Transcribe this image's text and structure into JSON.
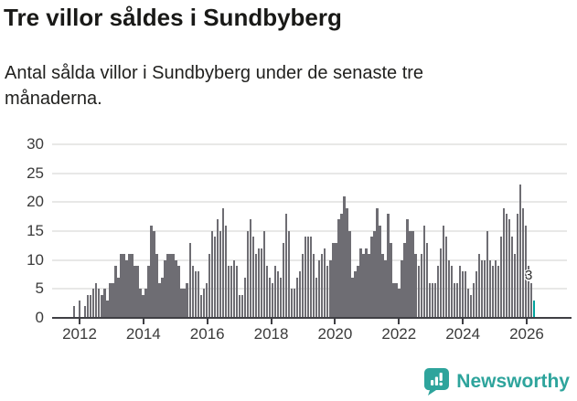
{
  "header": {
    "title": "Tre villor såldes i Sundbyberg",
    "subtitle": "Antal sålda villor i Sundbyberg under de senaste tre månaderna."
  },
  "chart_data": {
    "type": "bar",
    "title": "Tre villor såldes i Sundbyberg",
    "subtitle": "Antal sålda villor i Sundbyberg under de senaste tre månaderna.",
    "frequency": "monthly",
    "x_range_years": [
      2012,
      2026
    ],
    "x_tick_labels": [
      "2012",
      "2014",
      "2016",
      "2018",
      "2020",
      "2022",
      "2024",
      "2026"
    ],
    "y_ticks": [
      0,
      5,
      10,
      15,
      20,
      25,
      30
    ],
    "ylim": [
      0,
      30
    ],
    "grid": true,
    "bar_color": "#6e6d73",
    "highlight_color": "#00a29c",
    "values": [
      2,
      0,
      3,
      0,
      2,
      4,
      4,
      5,
      6,
      5,
      4,
      5,
      3,
      6,
      6,
      9,
      7,
      11,
      11,
      10,
      11,
      11,
      9,
      9,
      5,
      4,
      5,
      9,
      16,
      15,
      11,
      6,
      7,
      10,
      11,
      11,
      11,
      10,
      9,
      5,
      5,
      6,
      13,
      9,
      8,
      8,
      4,
      5,
      6,
      11,
      15,
      14,
      17,
      15,
      19,
      16,
      9,
      9,
      10,
      9,
      4,
      4,
      7,
      15,
      17,
      14,
      11,
      12,
      12,
      15,
      9,
      7,
      6,
      9,
      8,
      7,
      13,
      18,
      15,
      5,
      5,
      7,
      8,
      11,
      14,
      14,
      14,
      11,
      7,
      10,
      11,
      12,
      9,
      10,
      13,
      13,
      17,
      18,
      21,
      19,
      15,
      7,
      8,
      9,
      12,
      11,
      12,
      11,
      14,
      15,
      19,
      16,
      11,
      10,
      18,
      13,
      6,
      6,
      5,
      10,
      13,
      17,
      15,
      15,
      11,
      9,
      11,
      16,
      13,
      6,
      6,
      6,
      9,
      12,
      16,
      14,
      10,
      9,
      6,
      6,
      9,
      8,
      8,
      5,
      4,
      6,
      8,
      11,
      10,
      10,
      15,
      10,
      9,
      10,
      9,
      14,
      19,
      18,
      17,
      14,
      11,
      18,
      23,
      19,
      16,
      9,
      6,
      3
    ],
    "highlight": {
      "index": 167,
      "value": 3,
      "label": "3"
    }
  },
  "footer": {
    "brand": "Newsworthy"
  },
  "colors": {
    "accent_teal": "#00a29c",
    "logo_teal": "#2ea49c",
    "bar_gray": "#6e6d73",
    "axis_dark": "#3f3f44",
    "grid_light": "#e8e8e7"
  }
}
